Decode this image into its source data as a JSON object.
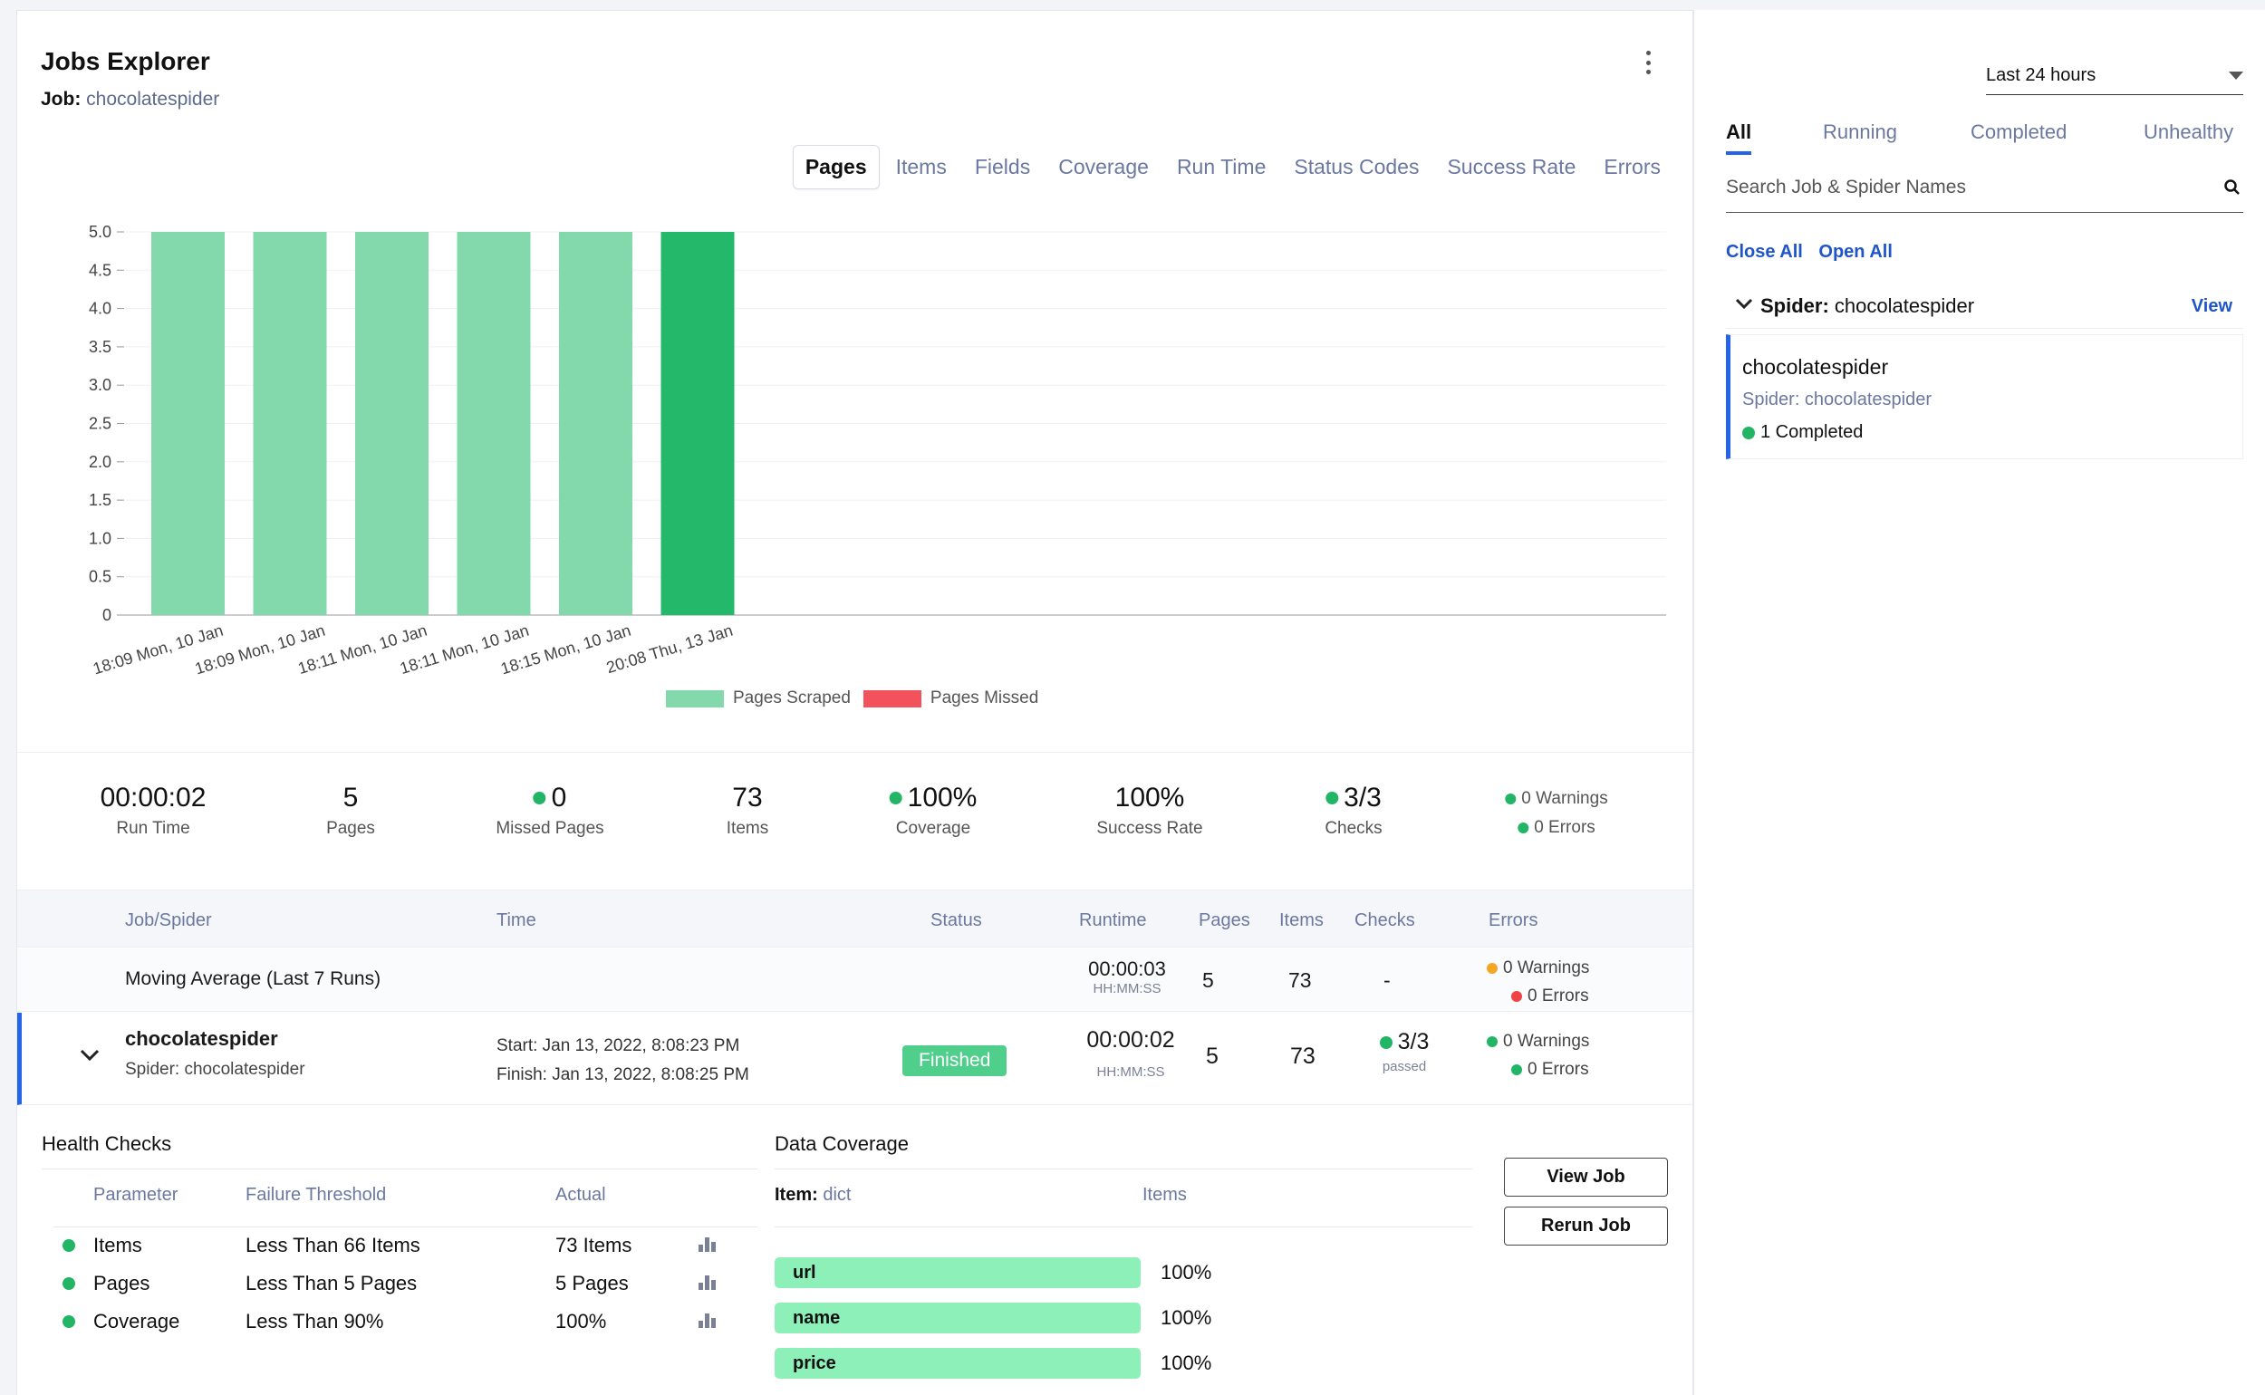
{
  "header": {
    "title": "Jobs Explorer",
    "job_label": "Job:",
    "job_name": "chocolatespider"
  },
  "tabs": [
    "Pages",
    "Items",
    "Fields",
    "Coverage",
    "Run Time",
    "Status Codes",
    "Success Rate",
    "Errors"
  ],
  "chart_data": {
    "type": "bar",
    "categories": [
      "18:09 Mon, 10 Jan",
      "18:09 Mon, 10 Jan",
      "18:11 Mon, 10 Jan",
      "18:11 Mon, 10 Jan",
      "18:15 Mon, 10 Jan",
      "20:08 Thu, 13 Jan"
    ],
    "series": [
      {
        "name": "Pages Scraped",
        "values": [
          5,
          5,
          5,
          5,
          5,
          5
        ]
      },
      {
        "name": "Pages Missed",
        "values": [
          0,
          0,
          0,
          0,
          0,
          0
        ]
      }
    ],
    "highlight_index": 5,
    "ylim": [
      0,
      5
    ],
    "yticks": [
      "0",
      "0.5",
      "1.0",
      "1.5",
      "2.0",
      "2.5",
      "3.0",
      "3.5",
      "4.0",
      "4.5",
      "5.0"
    ],
    "colors": {
      "scraped": "#83d9ab",
      "scraped_highlight": "#24b86a",
      "missed": "#f2525b"
    },
    "legend_position": "bottom",
    "grid": true
  },
  "stats": {
    "run_time": {
      "value": "00:00:02",
      "label": "Run Time"
    },
    "pages": {
      "value": "5",
      "label": "Pages"
    },
    "missed": {
      "value": "0",
      "label": "Missed Pages"
    },
    "items": {
      "value": "73",
      "label": "Items"
    },
    "coverage": {
      "value": "100%",
      "label": "Coverage"
    },
    "success": {
      "value": "100%",
      "label": "Success Rate"
    },
    "checks": {
      "value": "3/3",
      "label": "Checks"
    },
    "warnings": "0 Warnings",
    "errors": "0 Errors"
  },
  "table": {
    "headers": [
      "Job/Spider",
      "Time",
      "Status",
      "Runtime",
      "Pages",
      "Items",
      "Checks",
      "Errors"
    ],
    "moving_average": {
      "label": "Moving Average (Last 7 Runs)",
      "runtime": "00:00:03",
      "runtime_unit": "HH:MM:SS",
      "pages": "5",
      "items": "73",
      "checks": "-",
      "warnings": "0 Warnings",
      "errors": "0 Errors"
    },
    "job": {
      "name": "chocolatespider",
      "spider": "Spider: chocolatespider",
      "start": "Start: Jan 13, 2022, 8:08:23 PM",
      "finish": "Finish: Jan 13, 2022, 8:08:25 PM",
      "status": "Finished",
      "runtime": "00:00:02",
      "runtime_unit": "HH:MM:SS",
      "pages": "5",
      "items": "73",
      "checks": "3/3",
      "checks_sub": "passed",
      "warnings": "0 Warnings",
      "errors": "0 Errors"
    }
  },
  "health": {
    "title": "Health Checks",
    "headers": [
      "Parameter",
      "Failure Threshold",
      "Actual"
    ],
    "rows": [
      {
        "param": "Items",
        "threshold": "Less Than 66 Items",
        "actual": "73 Items"
      },
      {
        "param": "Pages",
        "threshold": "Less Than 5 Pages",
        "actual": "5 Pages"
      },
      {
        "param": "Coverage",
        "threshold": "Less Than 90%",
        "actual": "100%"
      }
    ]
  },
  "coverage": {
    "title": "Data Coverage",
    "item_label": "Item:",
    "item_type": "dict",
    "items_header": "Items",
    "fields": [
      {
        "name": "url",
        "pct": "100%"
      },
      {
        "name": "name",
        "pct": "100%"
      },
      {
        "name": "price",
        "pct": "100%"
      }
    ]
  },
  "actions": {
    "view_job": "View Job",
    "rerun_job": "Rerun Job"
  },
  "side": {
    "range": "Last 24 hours",
    "filters": [
      "All",
      "Running",
      "Completed",
      "Unhealthy"
    ],
    "search_placeholder": "Search Job & Spider Names",
    "close_all": "Close All",
    "open_all": "Open All",
    "spider_label": "Spider: chocolatespider",
    "view": "View",
    "card": {
      "name": "chocolatespider",
      "spider": "Spider: chocolatespider",
      "completed": "1 Completed"
    }
  }
}
